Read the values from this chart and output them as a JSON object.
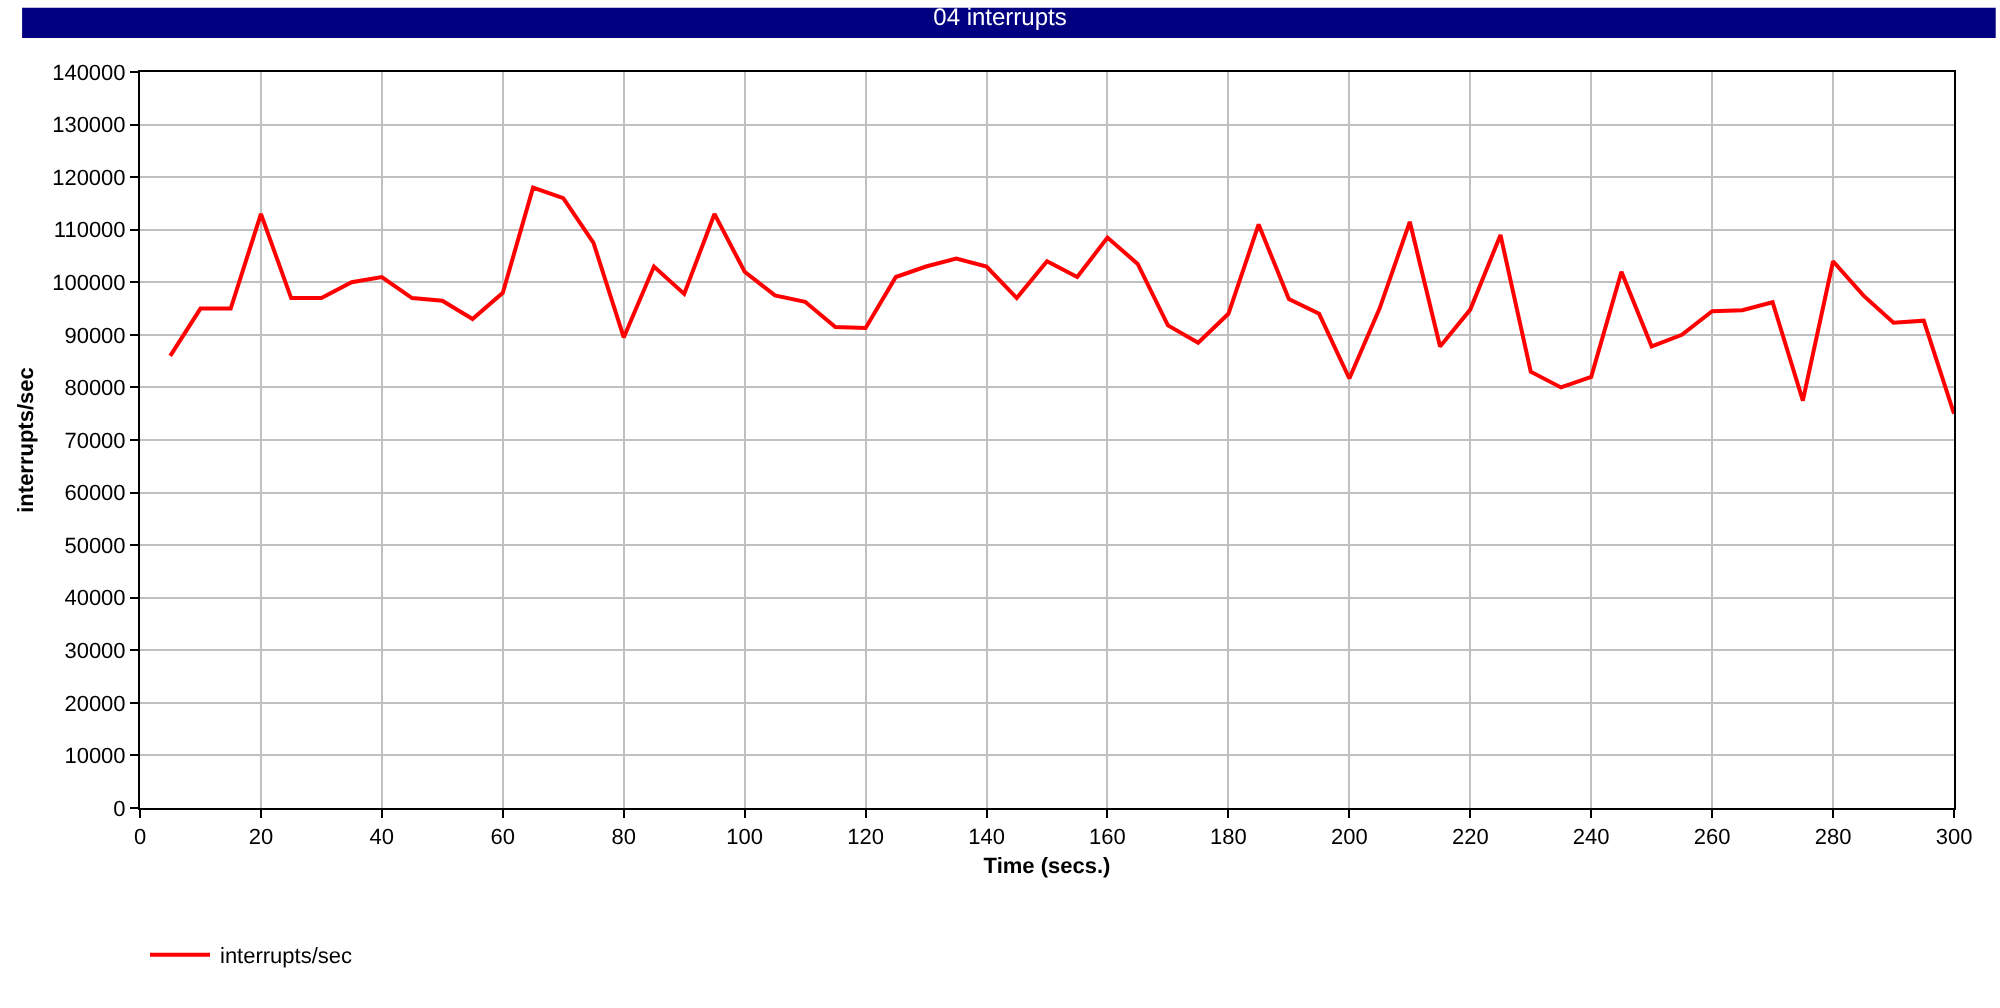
{
  "chart_data": {
    "type": "line",
    "title": "04 interrupts",
    "xlabel": "Time (secs.)",
    "ylabel": "interrupts/sec",
    "x": [
      5,
      10,
      15,
      20,
      25,
      30,
      35,
      40,
      45,
      50,
      55,
      60,
      65,
      70,
      75,
      80,
      85,
      90,
      95,
      100,
      105,
      110,
      115,
      120,
      125,
      130,
      135,
      140,
      145,
      150,
      155,
      160,
      165,
      170,
      175,
      180,
      185,
      190,
      195,
      200,
      205,
      210,
      215,
      220,
      225,
      230,
      235,
      240,
      245,
      250,
      255,
      260,
      265,
      270,
      275,
      280,
      285,
      290,
      295,
      300
    ],
    "series": [
      {
        "name": "interrupts/sec",
        "color": "#ff0000",
        "values": [
          86000,
          95000,
          95000,
          113000,
          97000,
          97000,
          100000,
          101000,
          97000,
          96500,
          93000,
          98000,
          118000,
          116000,
          107500,
          89500,
          103000,
          97800,
          113000,
          102000,
          97500,
          96300,
          91500,
          91300,
          101000,
          103000,
          104500,
          103000,
          97000,
          104000,
          101000,
          108500,
          103500,
          91800,
          88500,
          94000,
          111000,
          96800,
          94000,
          81700,
          95000,
          111500,
          87800,
          94800,
          109000,
          83000,
          80000,
          82000,
          102000,
          87800,
          90000,
          94500,
          94700,
          96200,
          77500,
          104000,
          97500,
          92300,
          92700,
          75000
        ]
      }
    ],
    "xlim": [
      0,
      300
    ],
    "xticks": [
      0,
      20,
      40,
      60,
      80,
      100,
      120,
      140,
      160,
      180,
      200,
      220,
      240,
      260,
      280,
      300
    ],
    "ylim": [
      0,
      140000
    ],
    "yticks": [
      0,
      10000,
      20000,
      30000,
      40000,
      50000,
      60000,
      70000,
      80000,
      90000,
      100000,
      110000,
      120000,
      130000,
      140000
    ],
    "grid": true,
    "legend": "bottom left",
    "marker": "none",
    "line_style": "solid"
  }
}
